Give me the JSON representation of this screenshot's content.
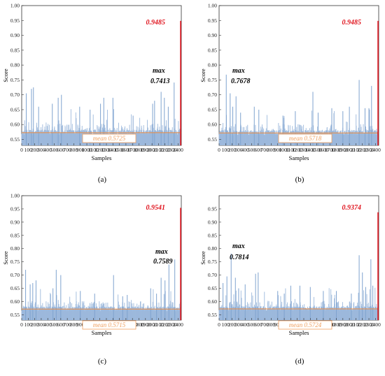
{
  "colors": {
    "bar": "#9db9dc",
    "bar_dark": "#7fa3cf",
    "mean_line": "#f28c3c",
    "mean_box": "#f2a060",
    "mean_text": "#f2a869",
    "peak": "#e0141e",
    "axis": "#333333"
  },
  "chart_data": [
    {
      "type": "bar",
      "panel_label": "(a)",
      "xlabel": "Samples",
      "ylabel": "Score",
      "xlim": [
        0,
        2450
      ],
      "ylim": [
        0.53,
        1.0
      ],
      "xticks": [
        0,
        100,
        200,
        300,
        400,
        500,
        600,
        700,
        800,
        900,
        1000,
        1100,
        1200,
        1300,
        1400,
        1500,
        1600,
        1700,
        1800,
        1900,
        2000,
        2100,
        2200,
        2300,
        2400
      ],
      "yticks": [
        "0.55",
        "0.60",
        "0.65",
        "0.70",
        "0.75",
        "0.80",
        "0.85",
        "0.90",
        "0.95",
        "1.00"
      ],
      "ytick_values": [
        0.55,
        0.6,
        0.65,
        0.7,
        0.75,
        0.8,
        0.85,
        0.9,
        0.95,
        1.0
      ],
      "mean": 0.5725,
      "mean_label": "mean 0.5725",
      "max_label": "max",
      "max_value_label": "0.7413",
      "max_sample": 2340,
      "peak_sample": 2440,
      "peak_value": 0.9485,
      "peak_label": "0.9485",
      "n_samples": 2440,
      "seed": 11,
      "spikes": [
        [
          70,
          0.705
        ],
        [
          150,
          0.72
        ],
        [
          180,
          0.725
        ],
        [
          260,
          0.66
        ],
        [
          470,
          0.67
        ],
        [
          560,
          0.69
        ],
        [
          610,
          0.7
        ],
        [
          890,
          0.66
        ],
        [
          1050,
          0.65
        ],
        [
          1210,
          0.67
        ],
        [
          1260,
          0.69
        ],
        [
          1400,
          0.69
        ],
        [
          1710,
          0.63
        ],
        [
          2010,
          0.67
        ],
        [
          2040,
          0.68
        ],
        [
          2140,
          0.71
        ],
        [
          2190,
          0.69
        ],
        [
          2250,
          0.66
        ],
        [
          2340,
          0.7413
        ]
      ]
    },
    {
      "type": "bar",
      "panel_label": "(b)",
      "xlabel": "Samples",
      "ylabel": "Score",
      "xlim": [
        0,
        2450
      ],
      "ylim": [
        0.53,
        1.0
      ],
      "xticks": [
        0,
        100,
        200,
        300,
        400,
        500,
        600,
        700,
        800,
        900,
        1000,
        1100,
        1200,
        1300,
        1400,
        1500,
        1600,
        1700,
        1800,
        1900,
        2000,
        2100,
        2200,
        2300,
        2400
      ],
      "yticks": [
        "0.55",
        "0.60",
        "0.65",
        "0.70",
        "0.75",
        "0.80",
        "0.85",
        "0.90",
        "0.95",
        "1.00"
      ],
      "ytick_values": [
        0.55,
        0.6,
        0.65,
        0.7,
        0.75,
        0.8,
        0.85,
        0.9,
        0.95,
        1.0
      ],
      "mean": 0.5718,
      "mean_label": "mean 0.5718",
      "max_label": "max",
      "max_value_label": "0.7678",
      "max_sample": 110,
      "peak_sample": 2440,
      "peak_value": 0.9485,
      "peak_label": "0.9485",
      "n_samples": 2440,
      "seed": 23,
      "spikes": [
        [
          110,
          0.7678
        ],
        [
          170,
          0.705
        ],
        [
          210,
          0.66
        ],
        [
          260,
          0.695
        ],
        [
          330,
          0.64
        ],
        [
          540,
          0.66
        ],
        [
          610,
          0.65
        ],
        [
          980,
          0.63
        ],
        [
          1170,
          0.645
        ],
        [
          1440,
          0.71
        ],
        [
          1520,
          0.64
        ],
        [
          1730,
          0.655
        ],
        [
          1900,
          0.645
        ],
        [
          2000,
          0.66
        ],
        [
          2150,
          0.75
        ],
        [
          2240,
          0.655
        ],
        [
          2300,
          0.655
        ],
        [
          2340,
          0.73
        ]
      ]
    },
    {
      "type": "bar",
      "panel_label": "(c)",
      "xlabel": "Samples",
      "ylabel": "Score",
      "xlim": [
        0,
        2450
      ],
      "ylim": [
        0.53,
        1.0
      ],
      "xticks": [
        0,
        100,
        200,
        300,
        400,
        500,
        600,
        700,
        800,
        900,
        1000,
        1100,
        1200,
        1300,
        1400,
        1500,
        1600,
        1700,
        1800,
        1900,
        2000,
        2100,
        2200,
        2300,
        2400
      ],
      "yticks": [
        "0.55",
        "0.60",
        "0.65",
        "0.70",
        "0.75",
        "0.80",
        "0.85",
        "0.90",
        "0.95",
        "1.00"
      ],
      "ytick_values": [
        0.55,
        0.6,
        0.65,
        0.7,
        0.75,
        0.8,
        0.85,
        0.9,
        0.95,
        1.0
      ],
      "mean": 0.5715,
      "mean_label": "mean 0.5715",
      "max_label": "max",
      "max_value_label": "0.7589",
      "max_sample": 2350,
      "peak_sample": 2440,
      "peak_value": 0.9541,
      "peak_label": "0.9541",
      "n_samples": 2440,
      "seed": 37,
      "spikes": [
        [
          60,
          0.72
        ],
        [
          130,
          0.665
        ],
        [
          170,
          0.67
        ],
        [
          220,
          0.68
        ],
        [
          480,
          0.65
        ],
        [
          530,
          0.72
        ],
        [
          600,
          0.7
        ],
        [
          900,
          0.64
        ],
        [
          1120,
          0.63
        ],
        [
          1410,
          0.7
        ],
        [
          1550,
          0.62
        ],
        [
          1620,
          0.625
        ],
        [
          1980,
          0.65
        ],
        [
          2070,
          0.63
        ],
        [
          2140,
          0.69
        ],
        [
          2200,
          0.68
        ],
        [
          2260,
          0.74
        ],
        [
          2350,
          0.7589
        ]
      ]
    },
    {
      "type": "bar",
      "panel_label": "(d)",
      "xlabel": "Samples",
      "ylabel": "Score",
      "xlim": [
        0,
        2450
      ],
      "ylim": [
        0.53,
        1.0
      ],
      "xticks": [
        0,
        100,
        200,
        300,
        400,
        500,
        600,
        700,
        800,
        900,
        1000,
        1100,
        1200,
        1300,
        1400,
        1500,
        1600,
        1700,
        1800,
        1900,
        2000,
        2100,
        2200,
        2300,
        2400
      ],
      "yticks": [
        "0.55",
        "0.60",
        "0.65",
        "0.70",
        "0.75",
        "0.80",
        "0.85",
        "0.90",
        "0.95"
      ],
      "ytick_values": [
        0.55,
        0.6,
        0.65,
        0.7,
        0.75,
        0.8,
        0.85,
        0.9,
        0.95
      ],
      "mean": 0.5724,
      "mean_label": "mean 0.5724",
      "max_label": "max",
      "max_value_label": "0.7814",
      "max_sample": 185,
      "peak_sample": 2440,
      "peak_value": 0.9374,
      "peak_label": "0.9374",
      "n_samples": 2440,
      "seed": 53,
      "spikes": [
        [
          60,
          0.67
        ],
        [
          120,
          0.695
        ],
        [
          185,
          0.7814
        ],
        [
          250,
          0.69
        ],
        [
          300,
          0.65
        ],
        [
          400,
          0.665
        ],
        [
          560,
          0.705
        ],
        [
          600,
          0.71
        ],
        [
          900,
          0.64
        ],
        [
          1000,
          0.63
        ],
        [
          1100,
          0.66
        ],
        [
          1240,
          0.66
        ],
        [
          1400,
          0.655
        ],
        [
          1600,
          0.64
        ],
        [
          1800,
          0.64
        ],
        [
          2030,
          0.63
        ],
        [
          2150,
          0.775
        ],
        [
          2200,
          0.71
        ],
        [
          2250,
          0.655
        ],
        [
          2330,
          0.76
        ],
        [
          2360,
          0.66
        ]
      ]
    }
  ]
}
